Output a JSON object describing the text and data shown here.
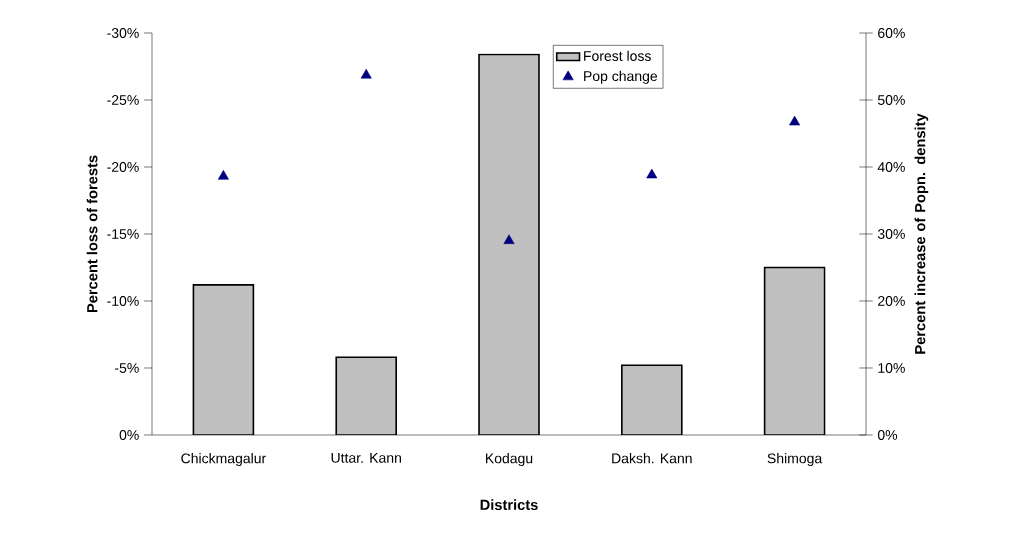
{
  "chart_data": {
    "type": "bar",
    "xlabel": "Districts",
    "ylabel": "Percent loss of forests",
    "y2label": "Percent increase of Popn. density",
    "categories": [
      "Chickmagalur",
      "Uttar. Kann",
      "Kodagu",
      "Daksh. Kann",
      "Shimoga"
    ],
    "series": [
      {
        "name": "Forest loss",
        "color": "#c0c0c0",
        "values": [
          -11.2,
          -5.8,
          -28.4,
          -5.2,
          -12.5
        ]
      },
      {
        "name": "Pop change",
        "type": "scatter",
        "axis": "y2",
        "marker": "triangle",
        "color": "#000080",
        "values": [
          38.6,
          53.7,
          29.0,
          38.8,
          46.7
        ]
      }
    ],
    "ylim": [
      0,
      -30
    ],
    "yticks": [
      {
        "value": 0,
        "label": "0%"
      },
      {
        "value": -5,
        "label": "-5%"
      },
      {
        "value": -10,
        "label": "-10%"
      },
      {
        "value": -15,
        "label": "-15%"
      },
      {
        "value": -20,
        "label": "-20%"
      },
      {
        "value": -25,
        "label": "-25%"
      },
      {
        "value": -30,
        "label": "-30%"
      }
    ],
    "y2lim": [
      0,
      60
    ],
    "y2ticks": [
      {
        "value": 0,
        "label": "0%"
      },
      {
        "value": 10,
        "label": "10%"
      },
      {
        "value": 20,
        "label": "20%"
      },
      {
        "value": 30,
        "label": "30%"
      },
      {
        "value": 40,
        "label": "40%"
      },
      {
        "value": 50,
        "label": "50%"
      },
      {
        "value": 60,
        "label": "60%"
      }
    ],
    "legend": "top right",
    "grid": false
  }
}
